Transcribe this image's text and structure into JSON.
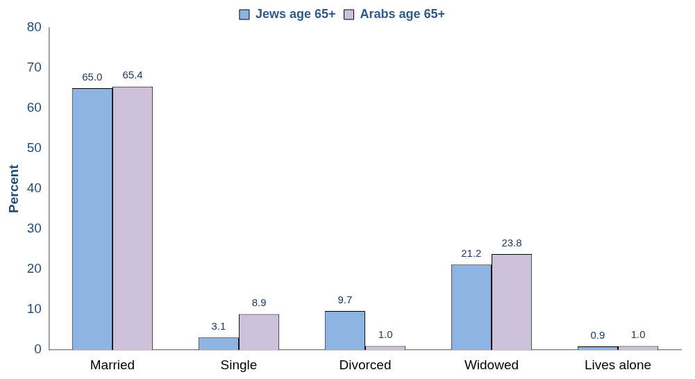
{
  "chart_data": {
    "type": "bar",
    "ylabel": "Percent",
    "categories": [
      "Married",
      "Single",
      "Divorced",
      "Widowed",
      "Lives alone"
    ],
    "series": [
      {
        "name": "Jews age 65+",
        "color": "#8db3e2",
        "values": [
          65.0,
          3.1,
          9.7,
          21.2,
          0.9
        ],
        "value_labels": [
          "65.0",
          "3.1",
          "9.7",
          "21.2",
          "0.9"
        ]
      },
      {
        "name": "Arabs age 65+",
        "color": "#ccc0da",
        "values": [
          65.4,
          8.9,
          1.0,
          23.8,
          1.0
        ],
        "value_labels": [
          "65.4",
          "8.9",
          "1.0",
          "23.8",
          "1.0"
        ]
      }
    ],
    "ylim": [
      0,
      80
    ],
    "yticks": [
      0,
      10,
      20,
      30,
      40,
      50,
      60,
      70,
      80
    ],
    "grid": false,
    "legend": "top"
  }
}
